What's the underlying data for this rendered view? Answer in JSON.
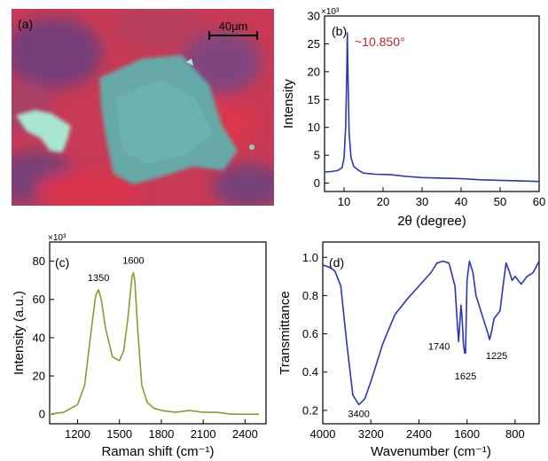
{
  "panel_a": {
    "label": "(a)",
    "scalebar_text": "40μm",
    "colors": {
      "background": "#d2334e",
      "flake": "#5fb3ae",
      "small_flake": "#a8e6d2"
    }
  },
  "chart_data": [
    {
      "id": "b",
      "type": "line",
      "panel_label": "(b)",
      "xlabel": "2θ (degree)",
      "ylabel": "Intensity",
      "multiplier": "×10³",
      "xlim": [
        5,
        60
      ],
      "ylim": [
        -1.5,
        30
      ],
      "xticks": [
        10,
        20,
        30,
        40,
        50,
        60
      ],
      "yticks": [
        0,
        5,
        10,
        15,
        20,
        25,
        30
      ],
      "xticklabels": [
        "10",
        "20",
        "30",
        "40",
        "50",
        "60"
      ],
      "yticklabels": [
        "0",
        "5",
        "10",
        "15",
        "20",
        "25",
        "30"
      ],
      "color": "#2a36b4",
      "annotation": {
        "text": "~10.850°",
        "color": "#c0282a"
      },
      "series": [
        {
          "x": [
            5,
            7,
            8.5,
            9.5,
            10.0,
            10.4,
            10.7,
            10.85,
            11.0,
            11.3,
            11.8,
            12.5,
            13.5,
            15,
            18,
            22,
            26,
            30,
            35,
            40,
            45,
            50,
            55,
            60
          ],
          "y": [
            2.0,
            2.1,
            2.3,
            2.8,
            4.5,
            10.0,
            20.0,
            27.0,
            20.0,
            9.0,
            4.5,
            3.0,
            2.4,
            1.8,
            1.6,
            1.5,
            1.2,
            1.0,
            0.9,
            0.8,
            0.6,
            0.5,
            0.4,
            0.3
          ]
        }
      ]
    },
    {
      "id": "c",
      "type": "line",
      "panel_label": "(c)",
      "xlabel": "Raman shift (cm⁻¹)",
      "ylabel": "Intensity (a.u.)",
      "multiplier": "×10³",
      "xlim": [
        1000,
        2550
      ],
      "ylim": [
        -5,
        90
      ],
      "xticks": [
        1200,
        1500,
        1800,
        2100,
        2400
      ],
      "yticks": [
        0,
        20,
        40,
        60,
        80
      ],
      "xticklabels": [
        "1200",
        "1500",
        "1800",
        "2100",
        "2400"
      ],
      "yticklabels": [
        "0",
        "20",
        "40",
        "60",
        "80"
      ],
      "color": "#8c9a32",
      "peak_labels": [
        {
          "x": 1350,
          "y": 65,
          "text": "1350"
        },
        {
          "x": 1600,
          "y": 74,
          "text": "1600"
        }
      ],
      "series": [
        {
          "x": [
            1000,
            1100,
            1200,
            1250,
            1300,
            1330,
            1350,
            1370,
            1400,
            1450,
            1500,
            1530,
            1560,
            1590,
            1600,
            1610,
            1630,
            1660,
            1700,
            1750,
            1800,
            1900,
            2000,
            2100,
            2200,
            2300,
            2400,
            2500
          ],
          "y": [
            0,
            1,
            5,
            15,
            45,
            62,
            65,
            60,
            45,
            30,
            28,
            33,
            50,
            72,
            74,
            70,
            45,
            15,
            6,
            3,
            2,
            1,
            2,
            1,
            1,
            0,
            0,
            0
          ]
        }
      ]
    },
    {
      "id": "d",
      "type": "line",
      "panel_label": "(d)",
      "xlabel": "Wavenumber (cm⁻¹)",
      "ylabel": "Transmittance",
      "xlim": [
        4000,
        400
      ],
      "ylim": [
        0.13,
        1.08
      ],
      "xticks": [
        4000,
        3200,
        2400,
        1600,
        800
      ],
      "yticks": [
        0.2,
        0.4,
        0.6,
        0.8,
        1.0
      ],
      "xticklabels": [
        "4000",
        "3200",
        "2400",
        "1600",
        "800"
      ],
      "yticklabels": [
        "0.2",
        "0.4",
        "0.6",
        "0.8",
        "1.0"
      ],
      "color": "#2a36b4",
      "peak_labels": [
        {
          "x": 3400,
          "y": 0.23,
          "text": "3400"
        },
        {
          "x": 1740,
          "y": 0.6,
          "text": "1740"
        },
        {
          "x": 1625,
          "y": 0.5,
          "text": "1625"
        },
        {
          "x": 1225,
          "y": 0.57,
          "text": "1225"
        }
      ],
      "series": [
        {
          "x": [
            4000,
            3900,
            3800,
            3700,
            3600,
            3500,
            3400,
            3300,
            3200,
            3000,
            2800,
            2600,
            2400,
            2200,
            2100,
            2000,
            1900,
            1800,
            1760,
            1740,
            1720,
            1700,
            1680,
            1660,
            1640,
            1625,
            1600,
            1560,
            1500,
            1450,
            1400,
            1350,
            1300,
            1250,
            1225,
            1200,
            1150,
            1100,
            1050,
            1000,
            950,
            900,
            850,
            800,
            700,
            600,
            500,
            400
          ],
          "y": [
            0.96,
            0.95,
            0.93,
            0.85,
            0.55,
            0.28,
            0.23,
            0.26,
            0.35,
            0.55,
            0.7,
            0.78,
            0.85,
            0.92,
            0.97,
            0.98,
            0.97,
            0.85,
            0.65,
            0.56,
            0.65,
            0.75,
            0.68,
            0.55,
            0.5,
            0.5,
            0.88,
            0.98,
            0.92,
            0.8,
            0.75,
            0.7,
            0.65,
            0.6,
            0.57,
            0.6,
            0.68,
            0.7,
            0.72,
            0.85,
            0.97,
            0.93,
            0.88,
            0.9,
            0.86,
            0.9,
            0.92,
            0.98
          ]
        }
      ]
    }
  ]
}
